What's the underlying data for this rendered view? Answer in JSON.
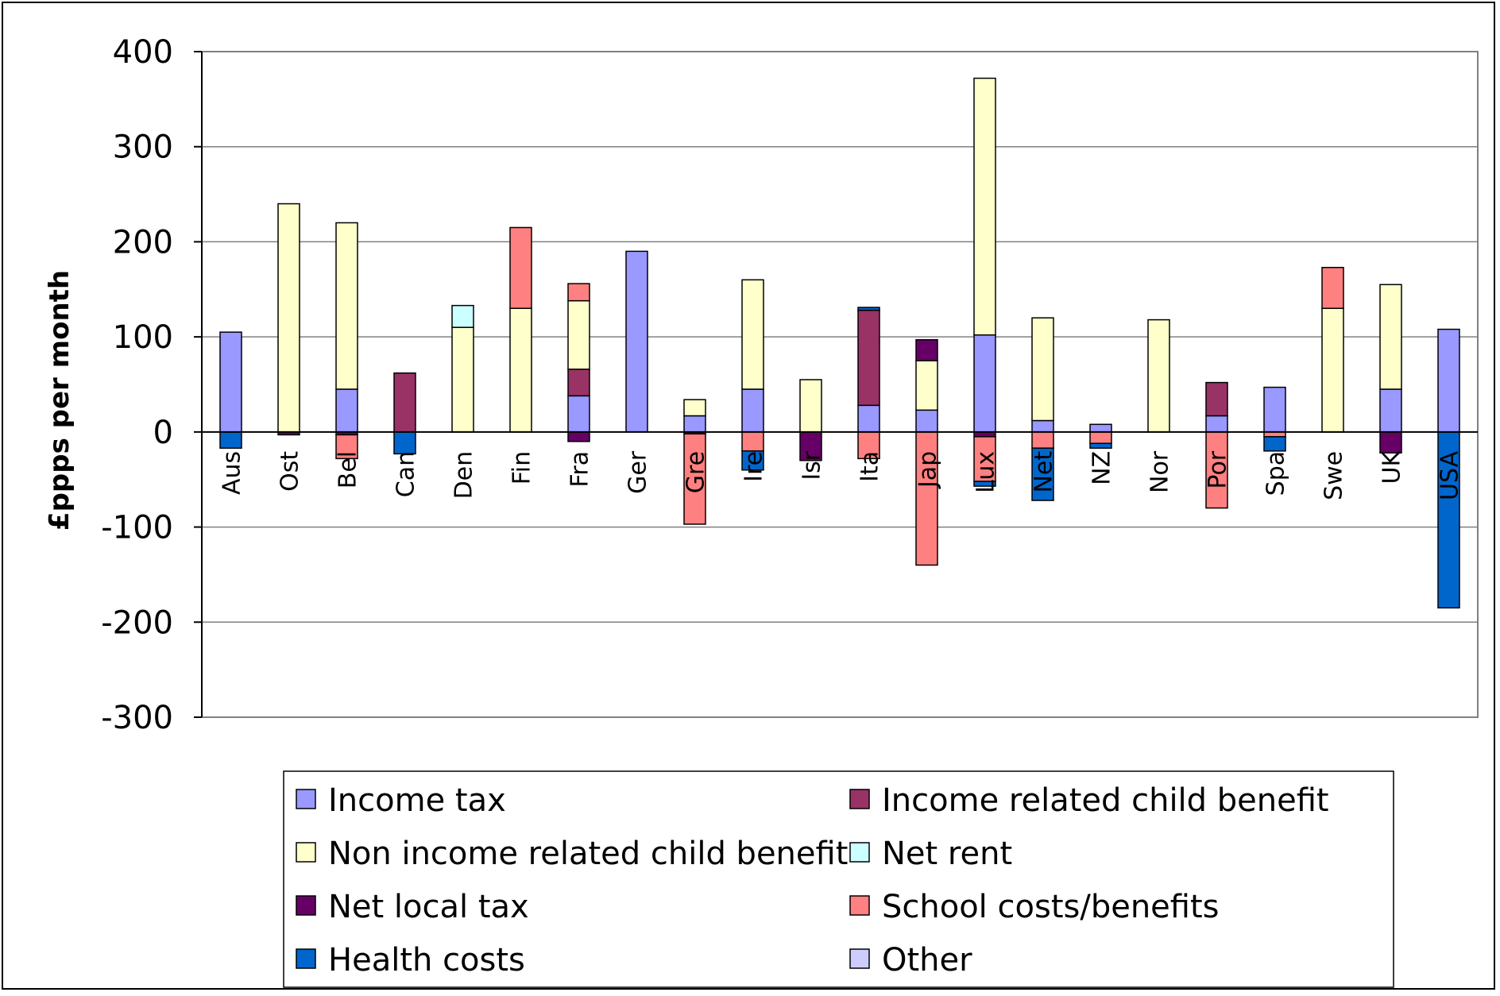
{
  "chart_data": {
    "type": "bar",
    "stacked": true,
    "title": "",
    "xlabel": "",
    "ylabel": "£ppps per month",
    "ylim": [
      -300,
      400
    ],
    "yticks": [
      400,
      300,
      200,
      100,
      0,
      -100,
      -200,
      -300
    ],
    "grid": true,
    "legend_position": "bottom",
    "categories": [
      "Aus",
      "Ost",
      "Bel",
      "Can",
      "Den",
      "Fin",
      "Fra",
      "Ger",
      "Gre",
      "Ire",
      "Isr",
      "Ita",
      "Jap",
      "Lux",
      "Net",
      "NZ",
      "Nor",
      "Por",
      "Spa",
      "Swe",
      "UK",
      "USA"
    ],
    "series": [
      {
        "name": "Income tax",
        "color": "#9999FF",
        "values": [
          105,
          0,
          45,
          0,
          0,
          0,
          38,
          190,
          17,
          45,
          0,
          28,
          23,
          102,
          12,
          8,
          0,
          17,
          47,
          0,
          45,
          108
        ]
      },
      {
        "name": "Income related child benefit",
        "color": "#993366",
        "values": [
          0,
          0,
          0,
          62,
          0,
          0,
          28,
          0,
          0,
          0,
          0,
          100,
          0,
          0,
          0,
          0,
          0,
          35,
          0,
          0,
          0,
          0
        ]
      },
      {
        "name": "Non income related child benefit",
        "color": "#FFFFCC",
        "values": [
          0,
          240,
          175,
          0,
          110,
          130,
          72,
          0,
          17,
          115,
          55,
          0,
          52,
          270,
          108,
          0,
          118,
          0,
          0,
          130,
          110,
          0
        ]
      },
      {
        "name": "Net rent",
        "color": "#CCFFFF",
        "values": [
          0,
          0,
          0,
          0,
          23,
          0,
          0,
          0,
          0,
          0,
          0,
          0,
          0,
          0,
          0,
          0,
          0,
          0,
          0,
          0,
          0,
          0
        ]
      },
      {
        "name": "Net local tax",
        "color": "#660066",
        "values": [
          0,
          -3,
          -3,
          0,
          0,
          0,
          -10,
          0,
          -2,
          0,
          -30,
          0,
          22,
          -5,
          0,
          0,
          0,
          0,
          0,
          0,
          -22,
          0
        ]
      },
      {
        "name": "School costs/benefits",
        "color": "#FF8080",
        "values": [
          0,
          0,
          -25,
          0,
          0,
          85,
          18,
          0,
          -95,
          -20,
          0,
          -28,
          -140,
          -47,
          -17,
          -12,
          0,
          -80,
          -5,
          43,
          0,
          0
        ]
      },
      {
        "name": "Health costs",
        "color": "#0066CC",
        "values": [
          -17,
          0,
          0,
          -23,
          0,
          0,
          0,
          0,
          0,
          -20,
          0,
          3,
          0,
          -5,
          -55,
          -5,
          0,
          0,
          -15,
          0,
          0,
          -185
        ]
      },
      {
        "name": "Other",
        "color": "#CCCCFF",
        "values": [
          0,
          0,
          0,
          0,
          0,
          0,
          0,
          0,
          0,
          0,
          0,
          0,
          0,
          0,
          0,
          0,
          0,
          0,
          0,
          0,
          0,
          0
        ]
      }
    ]
  }
}
